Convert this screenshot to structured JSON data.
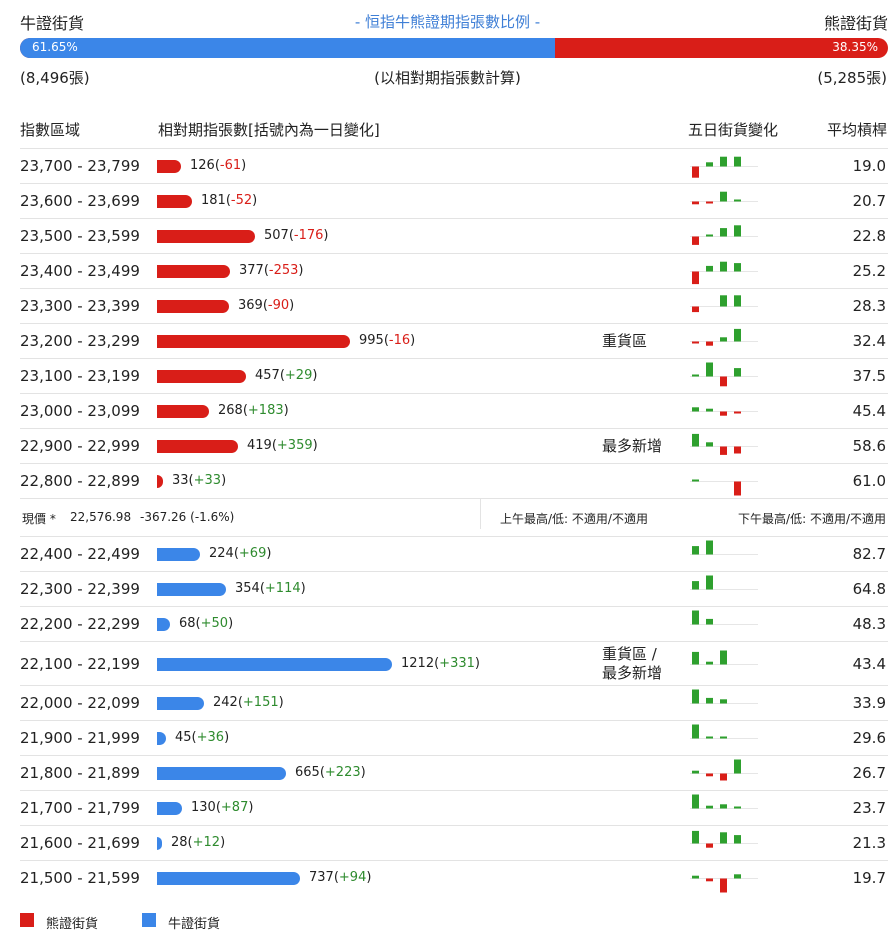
{
  "header": {
    "bull_label": "牛證街貨",
    "bear_label": "熊證街貨",
    "title": "- 恒指牛熊證期指張數比例 -",
    "bull_pct": "61.65%",
    "bear_pct": "38.35%",
    "bull_fraction": 0.6165,
    "bull_count": "(8,496張)",
    "bear_count": "(5,285張)",
    "basis": "(以相對期指張數計算)"
  },
  "columns": {
    "range": "指數區域",
    "contracts": "相對期指張數[括號內為一日變化]",
    "five_day": "五日街貨變化",
    "avg_ratio": "平均槓桿"
  },
  "colors": {
    "bear": "#d91e18",
    "bull": "#3b86e8",
    "up": "#2ea02e",
    "down": "#d91e18"
  },
  "bear_rows": [
    {
      "range": "23,700 - 23,799",
      "value": "126",
      "change": "-61",
      "avg": "19.0",
      "note": "",
      "spark": [
        -0.8,
        0.3,
        0.7,
        0.7,
        0
      ]
    },
    {
      "range": "23,600 - 23,699",
      "value": "181",
      "change": "-52",
      "avg": "20.7",
      "note": "",
      "spark": [
        -0.2,
        -0.1,
        0.7,
        0.1,
        0
      ]
    },
    {
      "range": "23,500 - 23,599",
      "value": "507",
      "change": "-176",
      "avg": "22.8",
      "note": "",
      "spark": [
        -0.6,
        0.1,
        0.6,
        0.8,
        0
      ]
    },
    {
      "range": "23,400 - 23,499",
      "value": "377",
      "change": "-253",
      "avg": "25.2",
      "note": "",
      "spark": [
        -0.9,
        0.4,
        0.7,
        0.6,
        0
      ]
    },
    {
      "range": "23,300 - 23,399",
      "value": "369",
      "change": "-90",
      "avg": "28.3",
      "note": "",
      "spark": [
        -0.4,
        0,
        0.8,
        0.8,
        0
      ]
    },
    {
      "range": "23,200 - 23,299",
      "value": "995",
      "change": "-16",
      "avg": "32.4",
      "note": "重貨區",
      "spark": [
        -0.1,
        -0.3,
        0.3,
        0.9,
        0
      ]
    },
    {
      "range": "23,100 - 23,199",
      "value": "457",
      "change": "+29",
      "avg": "37.5",
      "note": "",
      "spark": [
        0.1,
        1.0,
        -0.7,
        0.6,
        0
      ]
    },
    {
      "range": "23,000 - 23,099",
      "value": "268",
      "change": "+183",
      "avg": "45.4",
      "note": "",
      "spark": [
        0.3,
        0.2,
        -0.3,
        -0.1,
        0
      ]
    },
    {
      "range": "22,900 - 22,999",
      "value": "419",
      "change": "+359",
      "avg": "58.6",
      "note": "最多新增",
      "spark": [
        0.9,
        0.3,
        -0.6,
        -0.5,
        0
      ]
    },
    {
      "range": "22,800 - 22,899",
      "value": "33",
      "change": "+33",
      "avg": "61.0",
      "note": "",
      "spark": [
        0.1,
        0,
        0,
        -1.0,
        0
      ]
    }
  ],
  "current": {
    "label": "現價 *",
    "price": "22,576.98",
    "change": "-367.26 (-1.6%)",
    "am": "上午最高/低: 不適用/不適用",
    "pm": "下午最高/低: 不適用/不適用"
  },
  "bull_rows": [
    {
      "range": "22,400 - 22,499",
      "value": "224",
      "change": "+69",
      "avg": "82.7",
      "note": "",
      "spark": [
        0.6,
        1.0,
        0,
        0,
        0
      ]
    },
    {
      "range": "22,300 - 22,399",
      "value": "354",
      "change": "+114",
      "avg": "64.8",
      "note": "",
      "spark": [
        0.6,
        1.0,
        0,
        0,
        0
      ]
    },
    {
      "range": "22,200 - 22,299",
      "value": "68",
      "change": "+50",
      "avg": "48.3",
      "note": "",
      "spark": [
        1.0,
        0.4,
        0,
        0,
        0
      ]
    },
    {
      "range": "22,100 - 22,199",
      "value": "1212",
      "change": "+331",
      "avg": "43.4",
      "note": "重貨區 /\n最多新增",
      "spark": [
        0.9,
        0.2,
        1.0,
        0,
        0
      ]
    },
    {
      "range": "22,000 - 22,099",
      "value": "242",
      "change": "+151",
      "avg": "33.9",
      "note": "",
      "spark": [
        1.0,
        0.4,
        0.3,
        0,
        0
      ]
    },
    {
      "range": "21,900 - 21,999",
      "value": "45",
      "change": "+36",
      "avg": "29.6",
      "note": "",
      "spark": [
        1.0,
        0.1,
        0.1,
        0,
        0
      ]
    },
    {
      "range": "21,800 - 21,899",
      "value": "665",
      "change": "+223",
      "avg": "26.7",
      "note": "",
      "spark": [
        0.2,
        -0.2,
        -0.5,
        1.0,
        0
      ]
    },
    {
      "range": "21,700 - 21,799",
      "value": "130",
      "change": "+87",
      "avg": "23.7",
      "note": "",
      "spark": [
        1.0,
        0.2,
        0.3,
        0.1,
        0
      ]
    },
    {
      "range": "21,600 - 21,699",
      "value": "28",
      "change": "+12",
      "avg": "21.3",
      "note": "",
      "spark": [
        0.9,
        -0.3,
        0.8,
        0.6,
        0
      ]
    },
    {
      "range": "21,500 - 21,599",
      "value": "737",
      "change": "+94",
      "avg": "19.7",
      "note": "",
      "spark": [
        0.2,
        -0.2,
        -1.0,
        0.3,
        0
      ]
    }
  ],
  "bar_scale_max": 1212,
  "legend": {
    "bear": "熊證街貨",
    "bull": "牛證街貨"
  }
}
